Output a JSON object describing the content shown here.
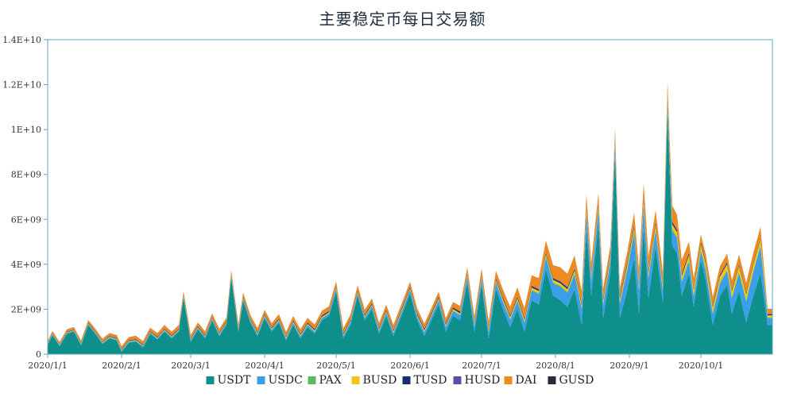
{
  "chart_data": {
    "type": "area",
    "stacked": true,
    "title": "主要稳定币每日交易额",
    "xlabel": "",
    "ylabel": "",
    "ylim": [
      0,
      14000000000
    ],
    "y_ticks": [
      0,
      2000000000,
      4000000000,
      6000000000,
      8000000000,
      10000000000,
      12000000000,
      14000000000
    ],
    "y_tick_labels": [
      "0",
      "2E+09",
      "4E+09",
      "6E+09",
      "8E+09",
      "1E+10",
      "1.2E+10",
      "1.4E+10"
    ],
    "x_range": [
      "2020-01-01",
      "2020-10-31"
    ],
    "x_ticks": [
      "2020-01-01",
      "2020-02-01",
      "2020-03-01",
      "2020-04-01",
      "2020-05-01",
      "2020-06-01",
      "2020-07-01",
      "2020-08-01",
      "2020-09-01",
      "2020-10-01"
    ],
    "x_tick_labels": [
      "2020/1/1",
      "2020/2/1",
      "2020/3/1",
      "2020/4/1",
      "2020/5/1",
      "2020/6/1",
      "2020/7/1",
      "2020/8/1",
      "2020/9/1",
      "2020/10/1"
    ],
    "grid": false,
    "legend_position": "bottom",
    "colors": {
      "USDT": "#0e8f8c",
      "USDC": "#3a9ee8",
      "PAX": "#5cb85c",
      "BUSD": "#f2c414",
      "TUSD": "#1a2c6e",
      "HUSD": "#5a4fa8",
      "DAI": "#f08a1c",
      "GUSD": "#2a2a3a",
      "axis": "#5aa9b8"
    },
    "series": [
      {
        "name": "USDT",
        "points": [
          [
            "2020-01-01",
            400000000
          ],
          [
            "2020-01-03",
            850000000
          ],
          [
            "2020-01-06",
            350000000
          ],
          [
            "2020-01-09",
            900000000
          ],
          [
            "2020-01-12",
            1000000000
          ],
          [
            "2020-01-15",
            400000000
          ],
          [
            "2020-01-18",
            1300000000
          ],
          [
            "2020-01-21",
            900000000
          ],
          [
            "2020-01-24",
            450000000
          ],
          [
            "2020-01-27",
            700000000
          ],
          [
            "2020-01-30",
            600000000
          ],
          [
            "2020-02-01",
            100000000
          ],
          [
            "2020-02-04",
            500000000
          ],
          [
            "2020-02-07",
            550000000
          ],
          [
            "2020-02-10",
            300000000
          ],
          [
            "2020-02-13",
            900000000
          ],
          [
            "2020-02-16",
            650000000
          ],
          [
            "2020-02-19",
            1000000000
          ],
          [
            "2020-02-22",
            700000000
          ],
          [
            "2020-02-25",
            1000000000
          ],
          [
            "2020-02-27",
            2500000000
          ],
          [
            "2020-03-01",
            550000000
          ],
          [
            "2020-03-04",
            1100000000
          ],
          [
            "2020-03-07",
            700000000
          ],
          [
            "2020-03-10",
            1500000000
          ],
          [
            "2020-03-13",
            800000000
          ],
          [
            "2020-03-16",
            1300000000
          ],
          [
            "2020-03-18",
            3400000000
          ],
          [
            "2020-03-21",
            1000000000
          ],
          [
            "2020-03-23",
            2400000000
          ],
          [
            "2020-03-26",
            1400000000
          ],
          [
            "2020-03-29",
            800000000
          ],
          [
            "2020-04-01",
            1600000000
          ],
          [
            "2020-04-04",
            1000000000
          ],
          [
            "2020-04-07",
            1400000000
          ],
          [
            "2020-04-10",
            600000000
          ],
          [
            "2020-04-13",
            1300000000
          ],
          [
            "2020-04-16",
            700000000
          ],
          [
            "2020-04-19",
            1200000000
          ],
          [
            "2020-04-22",
            900000000
          ],
          [
            "2020-04-25",
            1500000000
          ],
          [
            "2020-04-28",
            1700000000
          ],
          [
            "2020-05-01",
            2800000000
          ],
          [
            "2020-05-04",
            700000000
          ],
          [
            "2020-05-07",
            1300000000
          ],
          [
            "2020-05-10",
            2600000000
          ],
          [
            "2020-05-13",
            1500000000
          ],
          [
            "2020-05-16",
            2000000000
          ],
          [
            "2020-05-19",
            900000000
          ],
          [
            "2020-05-22",
            1700000000
          ],
          [
            "2020-05-25",
            800000000
          ],
          [
            "2020-05-28",
            1600000000
          ],
          [
            "2020-06-01",
            2700000000
          ],
          [
            "2020-06-04",
            1500000000
          ],
          [
            "2020-06-07",
            800000000
          ],
          [
            "2020-06-10",
            1500000000
          ],
          [
            "2020-06-13",
            2200000000
          ],
          [
            "2020-06-16",
            1000000000
          ],
          [
            "2020-06-19",
            1700000000
          ],
          [
            "2020-06-22",
            1500000000
          ],
          [
            "2020-06-25",
            3200000000
          ],
          [
            "2020-06-28",
            1000000000
          ],
          [
            "2020-07-01",
            3100000000
          ],
          [
            "2020-07-04",
            700000000
          ],
          [
            "2020-07-07",
            2900000000
          ],
          [
            "2020-07-10",
            2000000000
          ],
          [
            "2020-07-13",
            1200000000
          ],
          [
            "2020-07-16",
            2000000000
          ],
          [
            "2020-07-19",
            1000000000
          ],
          [
            "2020-07-22",
            2400000000
          ],
          [
            "2020-07-25",
            2200000000
          ],
          [
            "2020-07-28",
            3800000000
          ],
          [
            "2020-07-31",
            2600000000
          ],
          [
            "2020-08-03",
            2400000000
          ],
          [
            "2020-08-06",
            2100000000
          ],
          [
            "2020-08-09",
            2900000000
          ],
          [
            "2020-08-12",
            1300000000
          ],
          [
            "2020-08-14",
            5600000000
          ],
          [
            "2020-08-16",
            2600000000
          ],
          [
            "2020-08-19",
            5800000000
          ],
          [
            "2020-08-21",
            1600000000
          ],
          [
            "2020-08-24",
            3600000000
          ],
          [
            "2020-08-26",
            8900000000
          ],
          [
            "2020-08-28",
            1600000000
          ],
          [
            "2020-08-31",
            2800000000
          ],
          [
            "2020-09-03",
            4300000000
          ],
          [
            "2020-09-05",
            1800000000
          ],
          [
            "2020-09-07",
            5600000000
          ],
          [
            "2020-09-09",
            2500000000
          ],
          [
            "2020-09-12",
            4800000000
          ],
          [
            "2020-09-15",
            2300000000
          ],
          [
            "2020-09-17",
            10900000000
          ],
          [
            "2020-09-19",
            4800000000
          ],
          [
            "2020-09-21",
            4500000000
          ],
          [
            "2020-09-23",
            2600000000
          ],
          [
            "2020-09-26",
            3600000000
          ],
          [
            "2020-09-28",
            2100000000
          ],
          [
            "2020-10-01",
            4200000000
          ],
          [
            "2020-10-03",
            3300000000
          ],
          [
            "2020-10-06",
            1300000000
          ],
          [
            "2020-10-09",
            2600000000
          ],
          [
            "2020-10-12",
            3100000000
          ],
          [
            "2020-10-14",
            1800000000
          ],
          [
            "2020-10-17",
            2800000000
          ],
          [
            "2020-10-20",
            1400000000
          ],
          [
            "2020-10-23",
            2600000000
          ],
          [
            "2020-10-26",
            3600000000
          ],
          [
            "2020-10-29",
            1300000000
          ]
        ]
      },
      {
        "name": "USDC",
        "points": [
          [
            "2020-01-01",
            30000000
          ],
          [
            "2020-03-01",
            50000000
          ],
          [
            "2020-05-01",
            100000000
          ],
          [
            "2020-06-01",
            150000000
          ],
          [
            "2020-07-01",
            250000000
          ],
          [
            "2020-07-16",
            350000000
          ],
          [
            "2020-07-28",
            500000000
          ],
          [
            "2020-08-03",
            600000000
          ],
          [
            "2020-08-14",
            700000000
          ],
          [
            "2020-08-26",
            500000000
          ],
          [
            "2020-09-03",
            1100000000
          ],
          [
            "2020-09-07",
            1000000000
          ],
          [
            "2020-09-17",
            400000000
          ],
          [
            "2020-09-19",
            700000000
          ],
          [
            "2020-10-01",
            400000000
          ],
          [
            "2020-10-12",
            600000000
          ],
          [
            "2020-10-26",
            1200000000
          ],
          [
            "2020-10-29",
            300000000
          ]
        ]
      },
      {
        "name": "PAX",
        "points": [
          [
            "2020-01-01",
            10000000
          ],
          [
            "2020-06-01",
            20000000
          ],
          [
            "2020-08-01",
            40000000
          ],
          [
            "2020-09-07",
            60000000
          ],
          [
            "2020-10-29",
            30000000
          ]
        ]
      },
      {
        "name": "BUSD",
        "points": [
          [
            "2020-01-01",
            20000000
          ],
          [
            "2020-03-18",
            40000000
          ],
          [
            "2020-05-01",
            50000000
          ],
          [
            "2020-07-01",
            80000000
          ],
          [
            "2020-08-03",
            120000000
          ],
          [
            "2020-09-07",
            200000000
          ],
          [
            "2020-10-01",
            250000000
          ],
          [
            "2020-10-26",
            300000000
          ],
          [
            "2020-10-29",
            100000000
          ]
        ]
      },
      {
        "name": "TUSD",
        "points": [
          [
            "2020-01-01",
            20000000
          ],
          [
            "2020-04-01",
            40000000
          ],
          [
            "2020-07-01",
            60000000
          ],
          [
            "2020-08-01",
            60000000
          ],
          [
            "2020-09-07",
            100000000
          ],
          [
            "2020-10-29",
            50000000
          ]
        ]
      },
      {
        "name": "HUSD",
        "points": [
          [
            "2020-01-01",
            10000000
          ],
          [
            "2020-05-01",
            20000000
          ],
          [
            "2020-08-01",
            30000000
          ],
          [
            "2020-09-07",
            40000000
          ],
          [
            "2020-10-29",
            20000000
          ]
        ]
      },
      {
        "name": "DAI",
        "points": [
          [
            "2020-01-01",
            80000000
          ],
          [
            "2020-02-19",
            150000000
          ],
          [
            "2020-03-18",
            150000000
          ],
          [
            "2020-05-01",
            200000000
          ],
          [
            "2020-06-13",
            200000000
          ],
          [
            "2020-07-01",
            250000000
          ],
          [
            "2020-07-28",
            500000000
          ],
          [
            "2020-08-03",
            600000000
          ],
          [
            "2020-08-14",
            500000000
          ],
          [
            "2020-08-26",
            300000000
          ],
          [
            "2020-09-03",
            500000000
          ],
          [
            "2020-09-07",
            600000000
          ],
          [
            "2020-09-17",
            400000000
          ],
          [
            "2020-09-19",
            700000000
          ],
          [
            "2020-10-01",
            300000000
          ],
          [
            "2020-10-26",
            450000000
          ],
          [
            "2020-10-29",
            200000000
          ]
        ]
      },
      {
        "name": "GUSD",
        "points": [
          [
            "2020-01-01",
            5000000
          ],
          [
            "2020-10-29",
            10000000
          ]
        ]
      }
    ]
  }
}
